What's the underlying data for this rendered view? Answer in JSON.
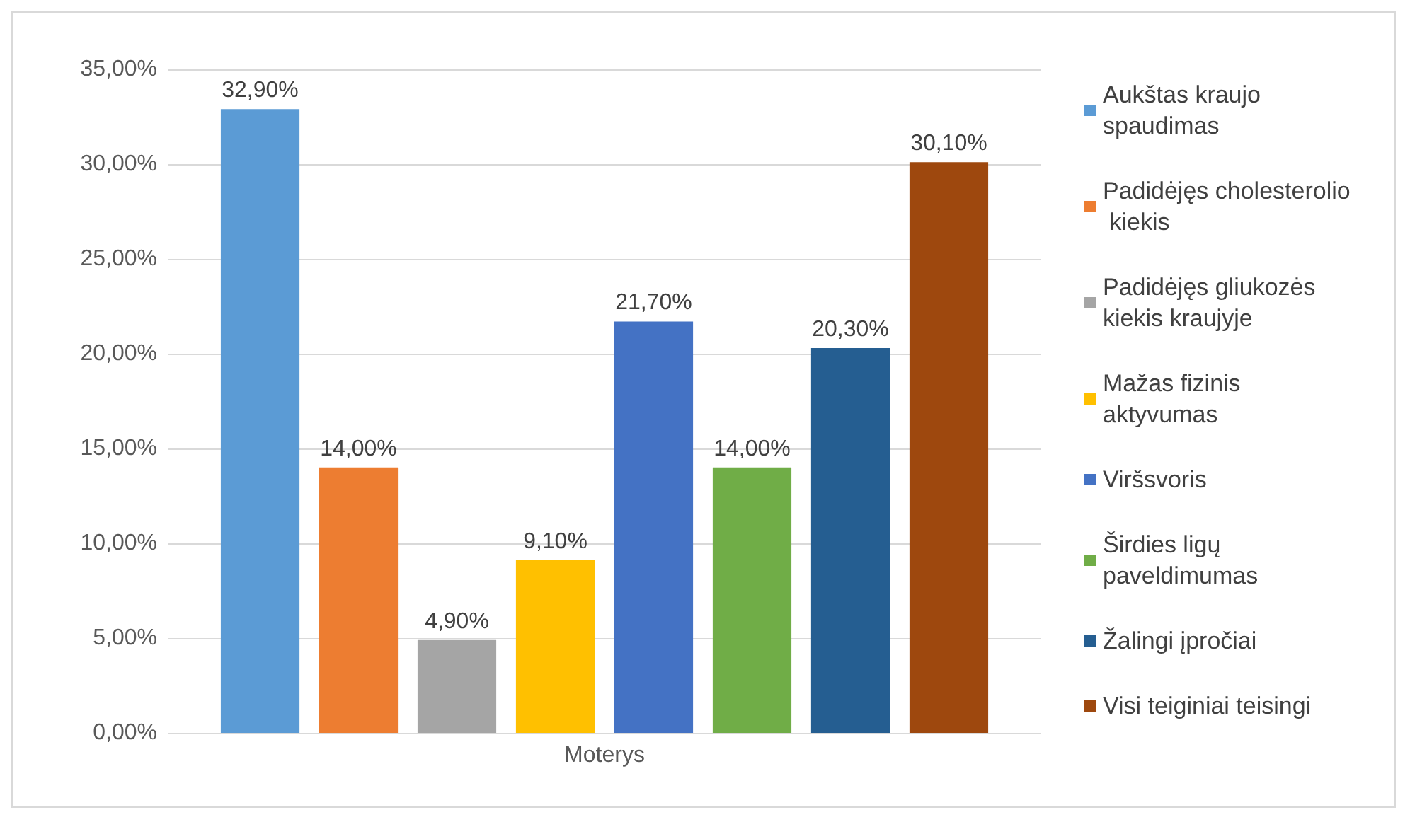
{
  "chart_data": {
    "type": "bar",
    "categories": [
      "Moterys"
    ],
    "series": [
      {
        "name": "Aukštas kraujo spaudimas",
        "color": "#5b9bd5",
        "values": [
          32.9
        ],
        "value_labels": [
          "32,90%"
        ]
      },
      {
        "name": "Padidėjęs cholesterolio kiekis",
        "color": "#ed7d31",
        "values": [
          14.0
        ],
        "value_labels": [
          "14,00%"
        ]
      },
      {
        "name": "Padidėjęs gliukozės kiekis kraujyje",
        "color": "#a5a5a5",
        "values": [
          4.9
        ],
        "value_labels": [
          "4,90%"
        ]
      },
      {
        "name": "Mažas fizinis aktyvumas",
        "color": "#ffc000",
        "values": [
          9.1
        ],
        "value_labels": [
          "9,10%"
        ]
      },
      {
        "name": "Viršsvoris",
        "color": "#4472c4",
        "values": [
          21.7
        ],
        "value_labels": [
          "21,70%"
        ]
      },
      {
        "name": "Širdies ligų paveldimumas",
        "color": "#70ad47",
        "values": [
          14.0
        ],
        "value_labels": [
          "14,00%"
        ]
      },
      {
        "name": "Žalingi įpročiai",
        "color": "#255e91",
        "values": [
          20.3
        ],
        "value_labels": [
          "20,30%"
        ]
      },
      {
        "name": "Visi teiginiai teisingi",
        "color": "#9e480e",
        "values": [
          30.1
        ],
        "value_labels": [
          "30,10%"
        ]
      }
    ],
    "ylim": [
      0,
      35
    ],
    "yticks": [
      {
        "value": 0,
        "label": "0,00%"
      },
      {
        "value": 5,
        "label": "5,00%"
      },
      {
        "value": 10,
        "label": "10,00%"
      },
      {
        "value": 15,
        "label": "15,00%"
      },
      {
        "value": 20,
        "label": "20,00%"
      },
      {
        "value": 25,
        "label": "25,00%"
      },
      {
        "value": 30,
        "label": "30,00%"
      },
      {
        "value": 35,
        "label": "35,00%"
      }
    ],
    "grid": "y",
    "legend": "right"
  }
}
